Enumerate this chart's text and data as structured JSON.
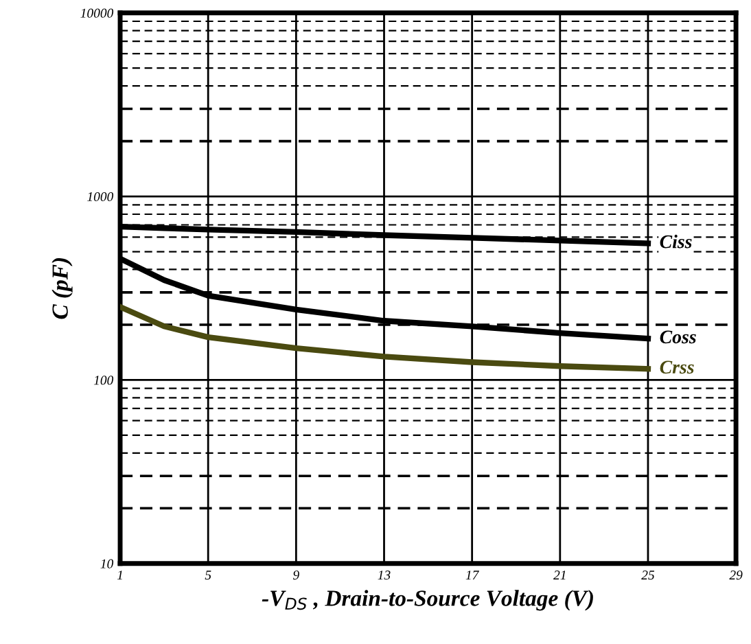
{
  "chart_data": {
    "type": "line",
    "xlabel": "-V$_{DS}$ , Drain-to-Source Voltage (V)",
    "ylabel": "C (pF)",
    "x": [
      1,
      3,
      5,
      9,
      13,
      17,
      21,
      25
    ],
    "series": [
      {
        "name": "Ciss",
        "color": "#000000",
        "values": [
          684,
          672,
          660,
          640,
          615,
          595,
          575,
          555
        ]
      },
      {
        "name": "Coss",
        "color": "#000000",
        "values": [
          458,
          350,
          288,
          242,
          210,
          196,
          180,
          168
        ]
      },
      {
        "name": "Crss",
        "color": "#4a4a10",
        "values": [
          250,
          196,
          171,
          149,
          134,
          125,
          119,
          115
        ]
      }
    ],
    "log": true,
    "xlim": [
      1,
      29
    ],
    "xticks": [
      1,
      5,
      9,
      13,
      17,
      21,
      25,
      29
    ],
    "ylim": [
      10,
      10000
    ],
    "yticks": [
      10,
      100,
      1000,
      10000
    ],
    "grid": true,
    "legend": false,
    "marker": "none",
    "line_style": "solid"
  }
}
